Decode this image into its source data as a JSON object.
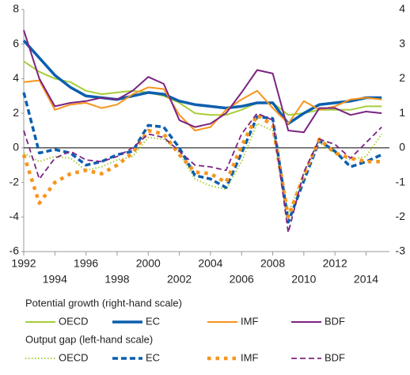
{
  "chart_data": {
    "type": "line",
    "x": [
      1992,
      1993,
      1994,
      1995,
      1996,
      1997,
      1998,
      1999,
      2000,
      2001,
      2002,
      2003,
      2004,
      2005,
      2006,
      2007,
      2008,
      2009,
      2010,
      2011,
      2012,
      2013,
      2014,
      2015
    ],
    "xlim": [
      1992,
      2015.5
    ],
    "xticks": [
      1992,
      1994,
      1996,
      1998,
      2000,
      2002,
      2004,
      2006,
      2008,
      2010,
      2012,
      2014
    ],
    "ylim": [
      -6,
      8
    ],
    "yticks": [
      -6,
      -4,
      -2,
      0,
      2,
      4,
      6,
      8
    ],
    "y2lim": [
      -3,
      4
    ],
    "y2ticks": [
      -3,
      -2,
      -1,
      0,
      1,
      2,
      3,
      4
    ],
    "series_groups": [
      {
        "title": "Potential growth (right-hand scale)",
        "axis": "y2",
        "series": [
          {
            "name": "OECD",
            "color": "#a6ce39",
            "style": "solid",
            "values": [
              2.5,
              2.2,
              2.0,
              1.9,
              1.65,
              1.55,
              1.6,
              1.65,
              1.6,
              1.5,
              1.3,
              1.0,
              0.95,
              0.95,
              1.1,
              1.3,
              1.3,
              0.95,
              1.0,
              1.1,
              1.1,
              1.1,
              1.2,
              1.2
            ]
          },
          {
            "name": "EC",
            "color": "#0b5fae",
            "style": "thick",
            "values": [
              3.1,
              2.6,
              2.1,
              1.75,
              1.5,
              1.45,
              1.4,
              1.5,
              1.6,
              1.55,
              1.35,
              1.25,
              1.2,
              1.15,
              1.2,
              1.3,
              1.3,
              0.7,
              1.0,
              1.25,
              1.3,
              1.35,
              1.45,
              1.45
            ]
          },
          {
            "name": "IMF",
            "color": "#f7941d",
            "style": "solid",
            "values": [
              1.9,
              1.95,
              1.1,
              1.25,
              1.3,
              1.15,
              1.25,
              1.55,
              1.75,
              1.7,
              0.95,
              0.5,
              0.6,
              1.1,
              1.4,
              1.65,
              1.15,
              0.7,
              1.35,
              1.1,
              1.2,
              1.4,
              1.45,
              1.4
            ]
          },
          {
            "name": "BDF",
            "color": "#7b2482",
            "style": "solid",
            "values": [
              3.4,
              2.0,
              1.2,
              1.3,
              1.35,
              1.45,
              1.4,
              1.65,
              2.05,
              1.85,
              0.8,
              0.6,
              0.7,
              1.0,
              1.6,
              2.25,
              2.15,
              0.5,
              0.45,
              1.15,
              1.15,
              0.95,
              1.05,
              1.0
            ]
          }
        ]
      },
      {
        "title": "Output gap (left-hand scale)",
        "axis": "y",
        "series": [
          {
            "name": "OECD",
            "color": "#a6ce39",
            "style": "dotted",
            "values": [
              -0.3,
              -0.8,
              -0.5,
              -0.6,
              -1.3,
              -1.1,
              -0.7,
              -0.5,
              0.6,
              0.5,
              -0.3,
              -1.8,
              -2.2,
              -2.4,
              -0.8,
              1.4,
              1.0,
              -3.8,
              -1.5,
              0.3,
              -0.3,
              -0.7,
              -0.5,
              0.8
            ]
          },
          {
            "name": "EC",
            "color": "#0b5fae",
            "style": "thick-dashed",
            "values": [
              3.2,
              -0.3,
              -0.1,
              -0.3,
              -1.0,
              -0.8,
              -0.4,
              -0.2,
              1.3,
              1.2,
              0.0,
              -1.6,
              -1.8,
              -2.3,
              -0.3,
              1.8,
              1.7,
              -4.3,
              -1.9,
              0.4,
              -0.2,
              -1.1,
              -0.8,
              -0.4
            ]
          },
          {
            "name": "IMF",
            "color": "#f7941d",
            "style": "square-dots",
            "values": [
              -0.4,
              -3.2,
              -2.0,
              -1.5,
              -1.3,
              -1.5,
              -1.0,
              -0.3,
              1.0,
              0.8,
              -0.4,
              -1.4,
              -1.5,
              -2.0,
              0.1,
              1.9,
              1.3,
              -4.0,
              -1.6,
              0.5,
              -0.3,
              -0.6,
              -0.8,
              -0.8
            ]
          },
          {
            "name": "BDF",
            "color": "#7b2482",
            "style": "dashed",
            "values": [
              1.0,
              -1.8,
              -0.6,
              -0.2,
              -0.7,
              -0.8,
              -0.5,
              0.0,
              0.8,
              0.6,
              -0.2,
              -1.0,
              -1.1,
              -1.3,
              0.8,
              2.0,
              1.6,
              -4.9,
              -1.4,
              0.5,
              0.2,
              -0.6,
              0.3,
              1.2
            ]
          }
        ]
      }
    ]
  }
}
